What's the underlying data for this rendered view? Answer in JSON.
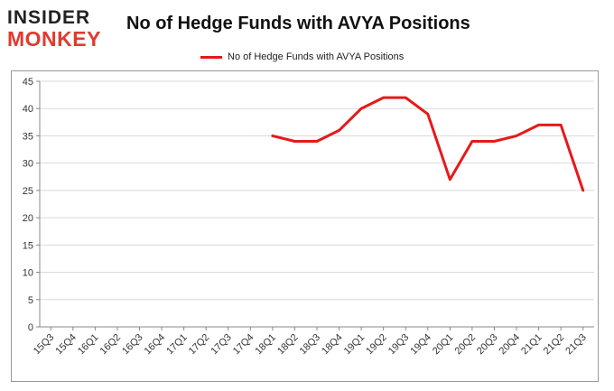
{
  "logo": {
    "line1": "INSIDER",
    "line2": "MONKEY",
    "icon": "insider-monkey-logo"
  },
  "colors": {
    "series": "#e6191a",
    "grid": "#d9d9d9",
    "axis": "#888888",
    "logo_red": "#e03a2f"
  },
  "chart_data": {
    "type": "line",
    "title": "No of Hedge Funds with AVYA Positions",
    "xlabel": "",
    "ylabel": "",
    "ylim": [
      0,
      45
    ],
    "yticks": [
      0,
      5,
      10,
      15,
      20,
      25,
      30,
      35,
      40,
      45
    ],
    "grid": true,
    "legend_position": "top-center",
    "categories": [
      "15Q3",
      "15Q4",
      "16Q1",
      "16Q2",
      "16Q3",
      "16Q4",
      "17Q1",
      "17Q2",
      "17Q3",
      "17Q4",
      "18Q1",
      "18Q2",
      "18Q3",
      "18Q4",
      "19Q1",
      "19Q2",
      "19Q3",
      "19Q4",
      "20Q1",
      "20Q2",
      "20Q3",
      "20Q4",
      "21Q1",
      "21Q2",
      "21Q3"
    ],
    "series": [
      {
        "name": "No of Hedge Funds with AVYA Positions",
        "color": "#e6191a",
        "values": [
          null,
          null,
          null,
          null,
          null,
          null,
          null,
          null,
          null,
          null,
          35,
          34,
          34,
          36,
          40,
          42,
          42,
          39,
          27,
          34,
          34,
          35,
          37,
          37,
          25
        ]
      }
    ]
  }
}
